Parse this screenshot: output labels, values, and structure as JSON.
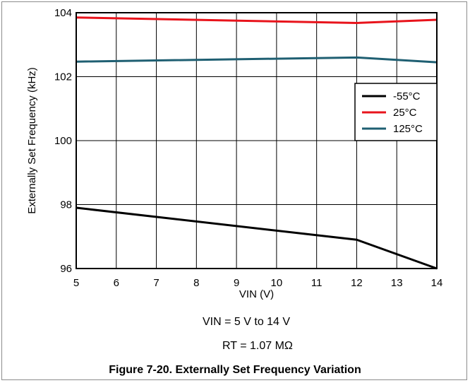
{
  "chart_data": {
    "type": "line",
    "xlabel": "VIN (V)",
    "ylabel": "Externally Set Frequency (kHz)",
    "xlim": [
      5,
      14
    ],
    "ylim": [
      96,
      104
    ],
    "xticks": [
      5,
      6,
      7,
      8,
      9,
      10,
      11,
      12,
      13,
      14
    ],
    "yticks": [
      96,
      98,
      100,
      102,
      104
    ],
    "grid": true,
    "legend_position": "top-right",
    "series": [
      {
        "name": "-55°C",
        "color": "#000000",
        "x": [
          5,
          12,
          14
        ],
        "y": [
          97.9,
          96.9,
          96.0
        ]
      },
      {
        "name": "25°C",
        "color": "#e8141c",
        "x": [
          5,
          12,
          14
        ],
        "y": [
          103.85,
          103.68,
          103.78
        ]
      },
      {
        "name": "125°C",
        "color": "#1f5f72",
        "x": [
          5,
          12,
          14
        ],
        "y": [
          102.47,
          102.6,
          102.45
        ]
      }
    ]
  },
  "conditions": {
    "line1": "VIN = 5 V to 14 V",
    "line2": "RT = 1.07 MΩ"
  },
  "caption": "Figure 7-20. Externally Set Frequency Variation"
}
